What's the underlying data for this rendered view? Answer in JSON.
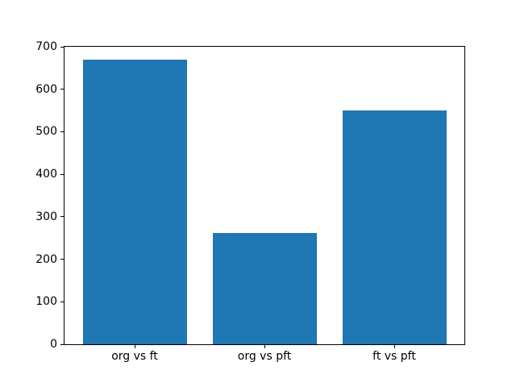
{
  "chart_data": {
    "type": "bar",
    "categories": [
      "org vs ft",
      "org vs pft",
      "ft vs pft"
    ],
    "values": [
      670,
      262,
      550
    ],
    "title": "",
    "xlabel": "",
    "ylabel": "",
    "ylim": [
      0,
      700
    ],
    "yticks": [
      0,
      100,
      200,
      300,
      400,
      500,
      600,
      700
    ],
    "xlim": [
      -0.54,
      2.54
    ],
    "bar_width": 0.8,
    "bar_color": "#1f77b4",
    "grid": false,
    "legend": false,
    "background_color": "#ffffff",
    "spine_color": "#000000"
  }
}
